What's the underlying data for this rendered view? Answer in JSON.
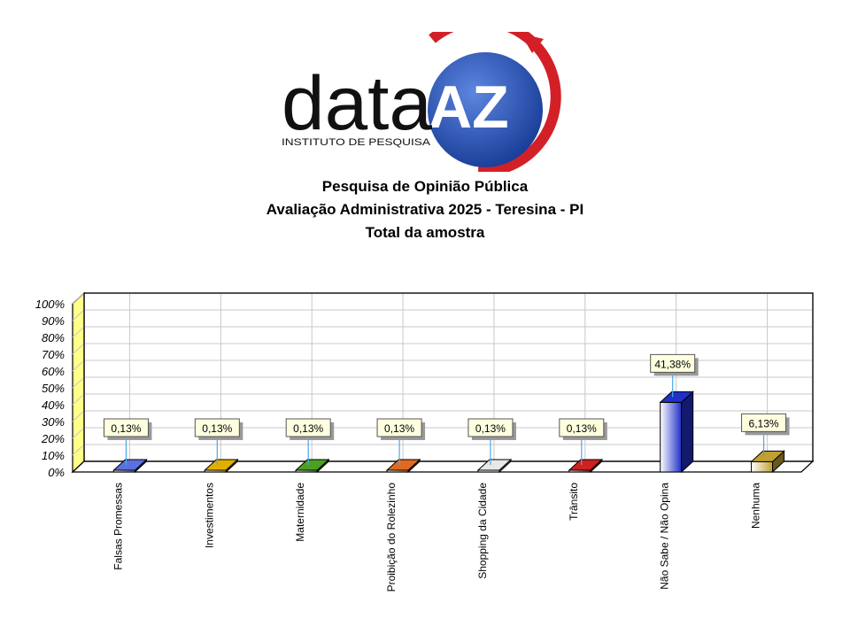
{
  "logo": {
    "word": "data",
    "mark": "AZ",
    "tagline": "INSTITUTO DE PESQUISA",
    "colors": {
      "blue": "#1F47A8",
      "red": "#D32027",
      "text": "#111111"
    }
  },
  "titles": {
    "line1": "Pesquisa de Opinião Pública",
    "line2": "Avaliação Administrativa 2025 - Teresina - PI",
    "line3": "Total da amostra"
  },
  "chart_data": {
    "type": "bar",
    "categories": [
      "Falsas Promessas",
      "Investimentos",
      "Maternidade",
      "Proibição do Rolezinho",
      "Shopping da Cidade",
      "Trânsito",
      "Não Sabe / Não Opina",
      "Nenhuma"
    ],
    "values": [
      0.13,
      0.13,
      0.13,
      0.13,
      0.13,
      0.13,
      41.38,
      6.13
    ],
    "data_labels": [
      "0,13%",
      "0,13%",
      "0,13%",
      "0,13%",
      "0,13%",
      "0,13%",
      "41,38%",
      "6,13%"
    ],
    "ylim": [
      0,
      100
    ],
    "yticks": [
      "0%",
      "10%",
      "20%",
      "30%",
      "40%",
      "50%",
      "60%",
      "70%",
      "80%",
      "90%",
      "100%"
    ],
    "grid": true,
    "three_d": true,
    "colors": [
      "#5A6FE0",
      "#E0B000",
      "#4CA020",
      "#E06A20",
      "#E8E8E8",
      "#D02020",
      "#2030C8",
      "#C0A030"
    ]
  }
}
